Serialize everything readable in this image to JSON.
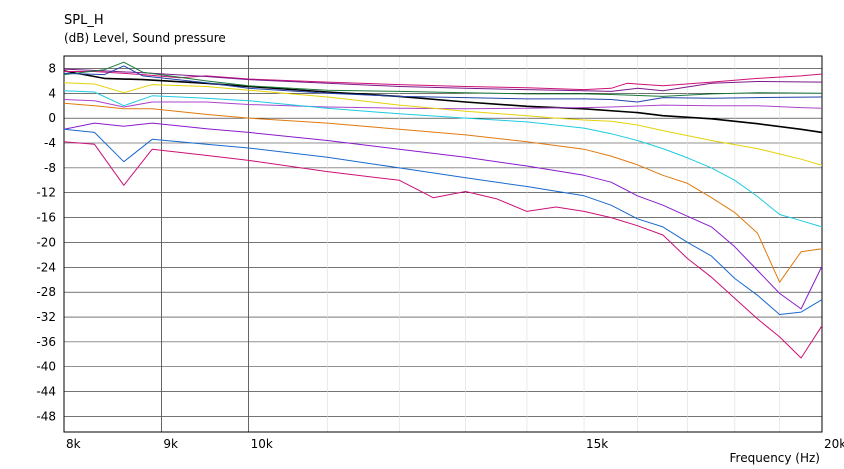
{
  "chart_data": {
    "type": "line",
    "title": "SPL_H",
    "subtitle": "(dB)  Level, Sound pressure",
    "xlabel": "Frequency  (Hz)",
    "ylabel": "",
    "x_scale": "log",
    "xlim": [
      8000,
      20000
    ],
    "ylim": [
      -50.5,
      10
    ],
    "x_major_gridlines": [
      9000,
      10000
    ],
    "grid": true,
    "y_ticks": [
      8,
      4,
      0,
      -4,
      -8,
      -12,
      -16,
      -20,
      -24,
      -28,
      -32,
      -36,
      -40,
      -44,
      -48
    ],
    "y_tick_labels": [
      "8",
      "4",
      "0",
      "-4",
      "-8",
      "-12",
      "-16",
      "-20",
      "-24",
      "-28",
      "-32",
      "-36",
      "-40",
      "-44",
      "-48"
    ],
    "x_ticks": [
      8000,
      9000,
      10000,
      15000,
      20000
    ],
    "x_tick_labels": [
      "8k",
      "9k",
      "10k",
      "15k",
      "20k"
    ],
    "series": [
      {
        "color": "#000000",
        "width": 1.6,
        "points": [
          [
            8000,
            7.6
          ],
          [
            8400,
            6.4
          ],
          [
            8800,
            6.2
          ],
          [
            9500,
            5.6
          ],
          [
            10000,
            5.1
          ],
          [
            11000,
            4.2
          ],
          [
            12000,
            3.5
          ],
          [
            13000,
            2.6
          ],
          [
            14000,
            1.9
          ],
          [
            15000,
            1.5
          ],
          [
            16000,
            0.9
          ],
          [
            16500,
            0.4
          ],
          [
            17500,
            -0.1
          ],
          [
            18500,
            -0.9
          ],
          [
            19500,
            -1.8
          ],
          [
            20000,
            -2.3
          ]
        ]
      },
      {
        "color": "#cc1177",
        "width": 1,
        "points": [
          [
            8000,
            7.5
          ],
          [
            8300,
            7.5
          ],
          [
            8800,
            7.0
          ],
          [
            9200,
            6.5
          ],
          [
            9500,
            6.8
          ],
          [
            10000,
            6.3
          ],
          [
            11000,
            5.8
          ],
          [
            12000,
            5.4
          ],
          [
            13000,
            5.1
          ],
          [
            14000,
            4.9
          ],
          [
            15000,
            4.6
          ],
          [
            15500,
            4.8
          ],
          [
            15800,
            5.6
          ],
          [
            16500,
            5.2
          ],
          [
            17500,
            5.8
          ],
          [
            18500,
            6.4
          ],
          [
            19500,
            6.8
          ],
          [
            20000,
            7.1
          ]
        ]
      },
      {
        "color": "#7a1a8a",
        "width": 1,
        "points": [
          [
            8000,
            7.9
          ],
          [
            8400,
            7.6
          ],
          [
            8800,
            7.3
          ],
          [
            9500,
            6.7
          ],
          [
            10000,
            6.2
          ],
          [
            11000,
            5.6
          ],
          [
            12000,
            5.1
          ],
          [
            13000,
            4.8
          ],
          [
            14000,
            4.6
          ],
          [
            15000,
            4.4
          ],
          [
            15500,
            4.3
          ],
          [
            16000,
            4.8
          ],
          [
            16500,
            4.4
          ],
          [
            17500,
            5.6
          ],
          [
            18500,
            5.9
          ],
          [
            20000,
            5.8
          ]
        ]
      },
      {
        "color": "#1a7a3a",
        "width": 1,
        "points": [
          [
            8000,
            7.0
          ],
          [
            8400,
            7.8
          ],
          [
            8600,
            9.0
          ],
          [
            8800,
            7.4
          ],
          [
            9500,
            6.0
          ],
          [
            10000,
            5.2
          ],
          [
            11000,
            4.5
          ],
          [
            12000,
            4.3
          ],
          [
            13000,
            4.1
          ],
          [
            14000,
            3.9
          ],
          [
            15000,
            3.9
          ],
          [
            15500,
            3.8
          ],
          [
            16500,
            3.5
          ],
          [
            17500,
            3.9
          ],
          [
            18500,
            4.1
          ],
          [
            20000,
            4.0
          ]
        ]
      },
      {
        "color": "#2244aa",
        "width": 1,
        "points": [
          [
            8000,
            7.2
          ],
          [
            8400,
            7.0
          ],
          [
            8600,
            8.4
          ],
          [
            8800,
            6.8
          ],
          [
            9500,
            5.7
          ],
          [
            10000,
            4.8
          ],
          [
            11000,
            4.0
          ],
          [
            12000,
            3.5
          ],
          [
            13000,
            3.3
          ],
          [
            14000,
            3.1
          ],
          [
            15000,
            3.1
          ],
          [
            15500,
            3.0
          ],
          [
            16000,
            2.6
          ],
          [
            16500,
            3.3
          ],
          [
            17500,
            3.2
          ],
          [
            18500,
            3.3
          ],
          [
            20000,
            3.4
          ]
        ]
      },
      {
        "color": "#aa44cc",
        "width": 1,
        "points": [
          [
            8000,
            3.0
          ],
          [
            8300,
            2.8
          ],
          [
            8600,
            1.8
          ],
          [
            8900,
            2.6
          ],
          [
            9500,
            2.6
          ],
          [
            10000,
            2.2
          ],
          [
            11000,
            1.8
          ],
          [
            12000,
            1.6
          ],
          [
            13000,
            1.5
          ],
          [
            14000,
            1.6
          ],
          [
            15000,
            1.7
          ],
          [
            15500,
            1.8
          ],
          [
            16500,
            2.1
          ],
          [
            17500,
            2.0
          ],
          [
            18500,
            2.0
          ],
          [
            19500,
            1.7
          ],
          [
            20000,
            1.6
          ]
        ]
      },
      {
        "color": "#e6d20a",
        "width": 1,
        "points": [
          [
            8000,
            5.7
          ],
          [
            8300,
            5.5
          ],
          [
            8600,
            4.1
          ],
          [
            8900,
            5.4
          ],
          [
            9500,
            5.1
          ],
          [
            10000,
            4.5
          ],
          [
            11000,
            3.4
          ],
          [
            12000,
            2.1
          ],
          [
            13000,
            1.1
          ],
          [
            14000,
            0.4
          ],
          [
            14500,
            0.0
          ],
          [
            15000,
            -0.3
          ],
          [
            15500,
            -0.5
          ],
          [
            16000,
            -1.1
          ],
          [
            16500,
            -2.0
          ],
          [
            17500,
            -3.6
          ],
          [
            18500,
            -4.9
          ],
          [
            19500,
            -6.6
          ],
          [
            20000,
            -7.6
          ]
        ]
      },
      {
        "color": "#1ecbe0",
        "width": 1,
        "points": [
          [
            8000,
            4.4
          ],
          [
            8300,
            4.2
          ],
          [
            8600,
            2.0
          ],
          [
            8900,
            3.6
          ],
          [
            9500,
            3.2
          ],
          [
            10000,
            2.8
          ],
          [
            11000,
            1.6
          ],
          [
            12000,
            0.7
          ],
          [
            13000,
            0.0
          ],
          [
            14000,
            -0.6
          ],
          [
            15000,
            -1.6
          ],
          [
            15500,
            -2.5
          ],
          [
            16000,
            -3.6
          ],
          [
            16500,
            -4.9
          ],
          [
            17000,
            -6.4
          ],
          [
            17500,
            -8.0
          ],
          [
            18000,
            -10.0
          ],
          [
            18500,
            -12.6
          ],
          [
            19000,
            -15.5
          ],
          [
            19500,
            -16.5
          ],
          [
            20000,
            -17.5
          ]
        ]
      },
      {
        "color": "#e07a10",
        "width": 1,
        "points": [
          [
            8000,
            2.4
          ],
          [
            8300,
            2.0
          ],
          [
            8600,
            1.5
          ],
          [
            8900,
            1.5
          ],
          [
            9500,
            0.6
          ],
          [
            10000,
            0.0
          ],
          [
            11000,
            -0.8
          ],
          [
            12000,
            -1.8
          ],
          [
            13000,
            -2.7
          ],
          [
            14000,
            -3.8
          ],
          [
            15000,
            -5.0
          ],
          [
            15500,
            -6.1
          ],
          [
            16000,
            -7.5
          ],
          [
            16500,
            -9.2
          ],
          [
            17000,
            -10.5
          ],
          [
            17500,
            -12.8
          ],
          [
            18000,
            -15.2
          ],
          [
            18500,
            -18.5
          ],
          [
            19000,
            -26.4
          ],
          [
            19500,
            -21.5
          ],
          [
            20000,
            -21.0
          ]
        ]
      },
      {
        "color": "#8a1acc",
        "width": 1,
        "points": [
          [
            8000,
            -1.8
          ],
          [
            8300,
            -0.8
          ],
          [
            8600,
            -1.3
          ],
          [
            8900,
            -0.8
          ],
          [
            9500,
            -1.7
          ],
          [
            10000,
            -2.3
          ],
          [
            11000,
            -3.6
          ],
          [
            12000,
            -5.0
          ],
          [
            13000,
            -6.3
          ],
          [
            14000,
            -7.7
          ],
          [
            15000,
            -9.2
          ],
          [
            15500,
            -10.3
          ],
          [
            16000,
            -12.5
          ],
          [
            16500,
            -14.0
          ],
          [
            17000,
            -15.8
          ],
          [
            17500,
            -17.5
          ],
          [
            18000,
            -20.7
          ],
          [
            18500,
            -24.5
          ],
          [
            19000,
            -28.2
          ],
          [
            19500,
            -30.7
          ],
          [
            20000,
            -23.8
          ]
        ]
      },
      {
        "color": "#1a6acc",
        "width": 1,
        "points": [
          [
            8000,
            -1.8
          ],
          [
            8300,
            -2.3
          ],
          [
            8600,
            -7.0
          ],
          [
            8900,
            -3.4
          ],
          [
            9500,
            -4.2
          ],
          [
            10000,
            -4.8
          ],
          [
            11000,
            -6.3
          ],
          [
            12000,
            -8.0
          ],
          [
            13000,
            -9.6
          ],
          [
            14000,
            -11.0
          ],
          [
            15000,
            -12.5
          ],
          [
            15500,
            -14.0
          ],
          [
            16000,
            -16.2
          ],
          [
            16500,
            -17.5
          ],
          [
            17000,
            -20.0
          ],
          [
            17500,
            -22.2
          ],
          [
            18000,
            -25.8
          ],
          [
            18500,
            -28.5
          ],
          [
            19000,
            -31.6
          ],
          [
            19500,
            -31.2
          ],
          [
            20000,
            -29.2
          ]
        ]
      },
      {
        "color": "#cc1177",
        "width": 1,
        "points": [
          [
            8000,
            -3.8
          ],
          [
            8300,
            -4.2
          ],
          [
            8600,
            -10.8
          ],
          [
            8900,
            -5.0
          ],
          [
            9500,
            -6.0
          ],
          [
            10000,
            -6.8
          ],
          [
            11000,
            -8.6
          ],
          [
            12000,
            -10.0
          ],
          [
            12500,
            -12.8
          ],
          [
            13000,
            -11.8
          ],
          [
            13500,
            -13.0
          ],
          [
            14000,
            -15.0
          ],
          [
            14500,
            -14.3
          ],
          [
            15000,
            -15.0
          ],
          [
            15500,
            -16.0
          ],
          [
            16000,
            -17.3
          ],
          [
            16500,
            -18.8
          ],
          [
            17000,
            -22.6
          ],
          [
            17500,
            -25.6
          ],
          [
            18000,
            -29.0
          ],
          [
            18500,
            -32.3
          ],
          [
            19000,
            -35.2
          ],
          [
            19500,
            -38.6
          ],
          [
            20000,
            -33.4
          ]
        ]
      }
    ]
  }
}
